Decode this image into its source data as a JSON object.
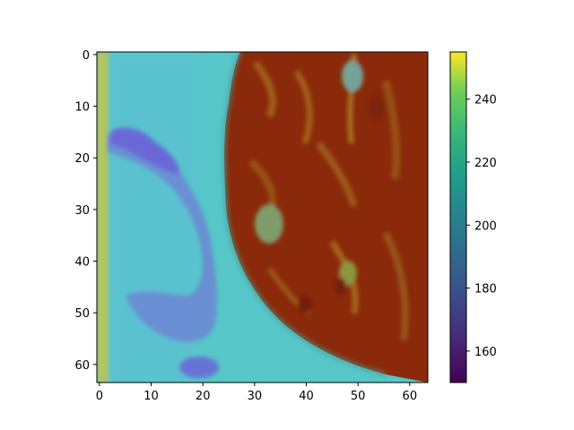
{
  "chart_data": {
    "type": "heatmap",
    "title": "",
    "xlabel": "",
    "ylabel": "",
    "xlim": [
      -0.5,
      63.5
    ],
    "ylim": [
      63.5,
      -0.5
    ],
    "x_ticks": [
      0,
      10,
      20,
      30,
      40,
      50,
      60
    ],
    "y_ticks": [
      0,
      10,
      20,
      30,
      40,
      50,
      60
    ],
    "colorbar": {
      "colormap": "viridis",
      "range": [
        150,
        255
      ],
      "ticks": [
        160,
        180,
        200,
        220,
        240
      ]
    },
    "image": {
      "description_free": true,
      "regions": [
        {
          "label": "",
          "fill": "#56c8c8"
        },
        {
          "label": "",
          "fill": "#8b2d0c"
        }
      ]
    },
    "grid": false,
    "legend": "none"
  }
}
